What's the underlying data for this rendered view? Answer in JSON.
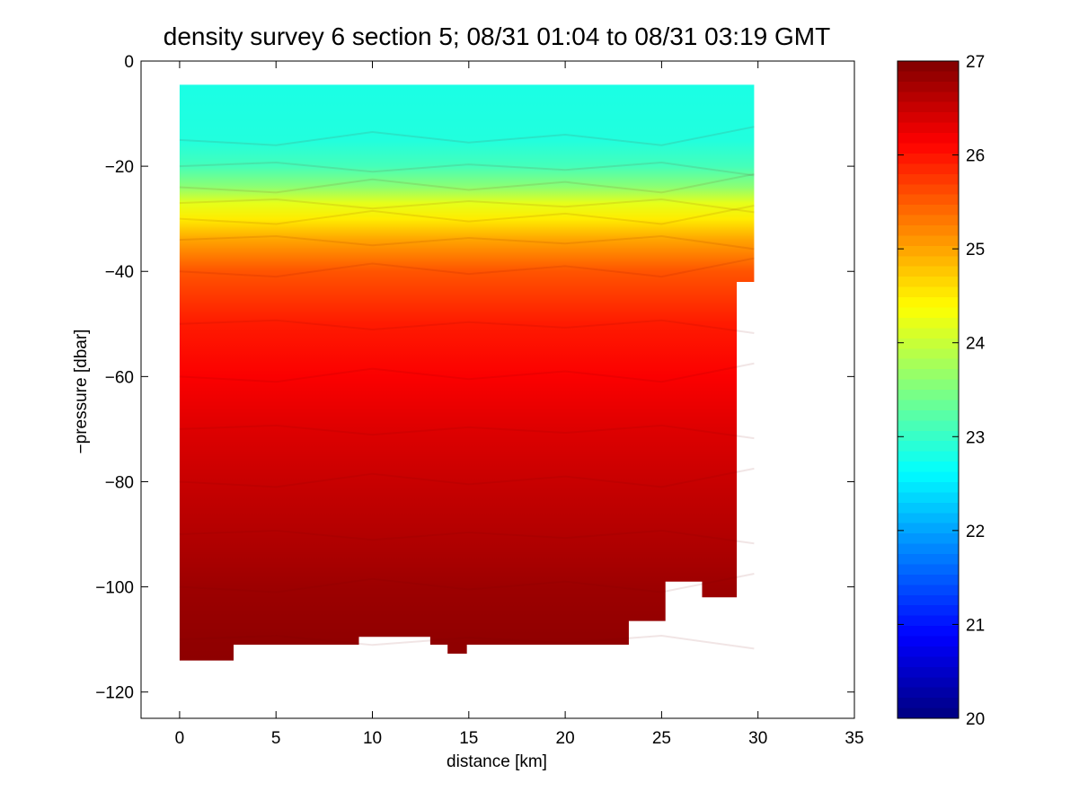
{
  "chart_data": {
    "type": "heatmap",
    "title": "density survey 6 section 5; 08/31 01:04 to 08/31 03:19 GMT",
    "xlabel": "distance [km]",
    "ylabel": "−pressure [dbar]",
    "xlim": [
      -2,
      35
    ],
    "ylim": [
      -125,
      0
    ],
    "x_ticks": [
      "0",
      "5",
      "10",
      "15",
      "20",
      "25",
      "30",
      "35"
    ],
    "y_ticks": [
      "0",
      "−20",
      "−40",
      "−60",
      "−80",
      "−100",
      "−120"
    ],
    "colorbar": {
      "range": [
        20,
        27
      ],
      "ticks": [
        "20",
        "21",
        "22",
        "23",
        "24",
        "25",
        "26",
        "27"
      ],
      "colormap": "jet",
      "levels": 64
    },
    "data_extent": {
      "x_start": 0,
      "x_end": 29.8,
      "top_pressure": -4.5
    },
    "bottom_profile": [
      {
        "x": 0,
        "y": -114
      },
      {
        "x": 2.8,
        "y": -114
      },
      {
        "x": 2.8,
        "y": -111
      },
      {
        "x": 9.3,
        "y": -111
      },
      {
        "x": 9.3,
        "y": -109.5
      },
      {
        "x": 13,
        "y": -109.5
      },
      {
        "x": 13,
        "y": -111
      },
      {
        "x": 13.9,
        "y": -111
      },
      {
        "x": 13.9,
        "y": -112.7
      },
      {
        "x": 14.9,
        "y": -112.7
      },
      {
        "x": 14.9,
        "y": -111
      },
      {
        "x": 23.3,
        "y": -111
      },
      {
        "x": 23.3,
        "y": -106.5
      },
      {
        "x": 25.2,
        "y": -106.5
      },
      {
        "x": 25.2,
        "y": -99
      },
      {
        "x": 27.1,
        "y": -99
      },
      {
        "x": 27.1,
        "y": -102
      },
      {
        "x": 28.9,
        "y": -102
      },
      {
        "x": 28.9,
        "y": -42
      },
      {
        "x": 29.8,
        "y": -42
      },
      {
        "x": 29.8,
        "y": -4.5
      }
    ],
    "profile_x": [
      0,
      5,
      10,
      15,
      20,
      25,
      29.8
    ],
    "density_profile": [
      {
        "p": -4.5,
        "sigma": 22.8
      },
      {
        "p": -15,
        "sigma": 22.85
      },
      {
        "p": -20,
        "sigma": 23.1
      },
      {
        "p": -24,
        "sigma": 23.6
      },
      {
        "p": -27,
        "sigma": 24.2
      },
      {
        "p": -30,
        "sigma": 24.5
      },
      {
        "p": -34,
        "sigma": 25.0
      },
      {
        "p": -40,
        "sigma": 25.55
      },
      {
        "p": -50,
        "sigma": 25.95
      },
      {
        "p": -60,
        "sigma": 26.15
      },
      {
        "p": -70,
        "sigma": 26.35
      },
      {
        "p": -80,
        "sigma": 26.5
      },
      {
        "p": -90,
        "sigma": 26.65
      },
      {
        "p": -100,
        "sigma": 26.8
      },
      {
        "p": -110,
        "sigma": 26.88
      },
      {
        "p": -114,
        "sigma": 26.9
      }
    ],
    "isopycnal_offset": [
      0,
      -1.0,
      1.5,
      -0.5,
      1.0,
      -1.0,
      2.5
    ]
  }
}
